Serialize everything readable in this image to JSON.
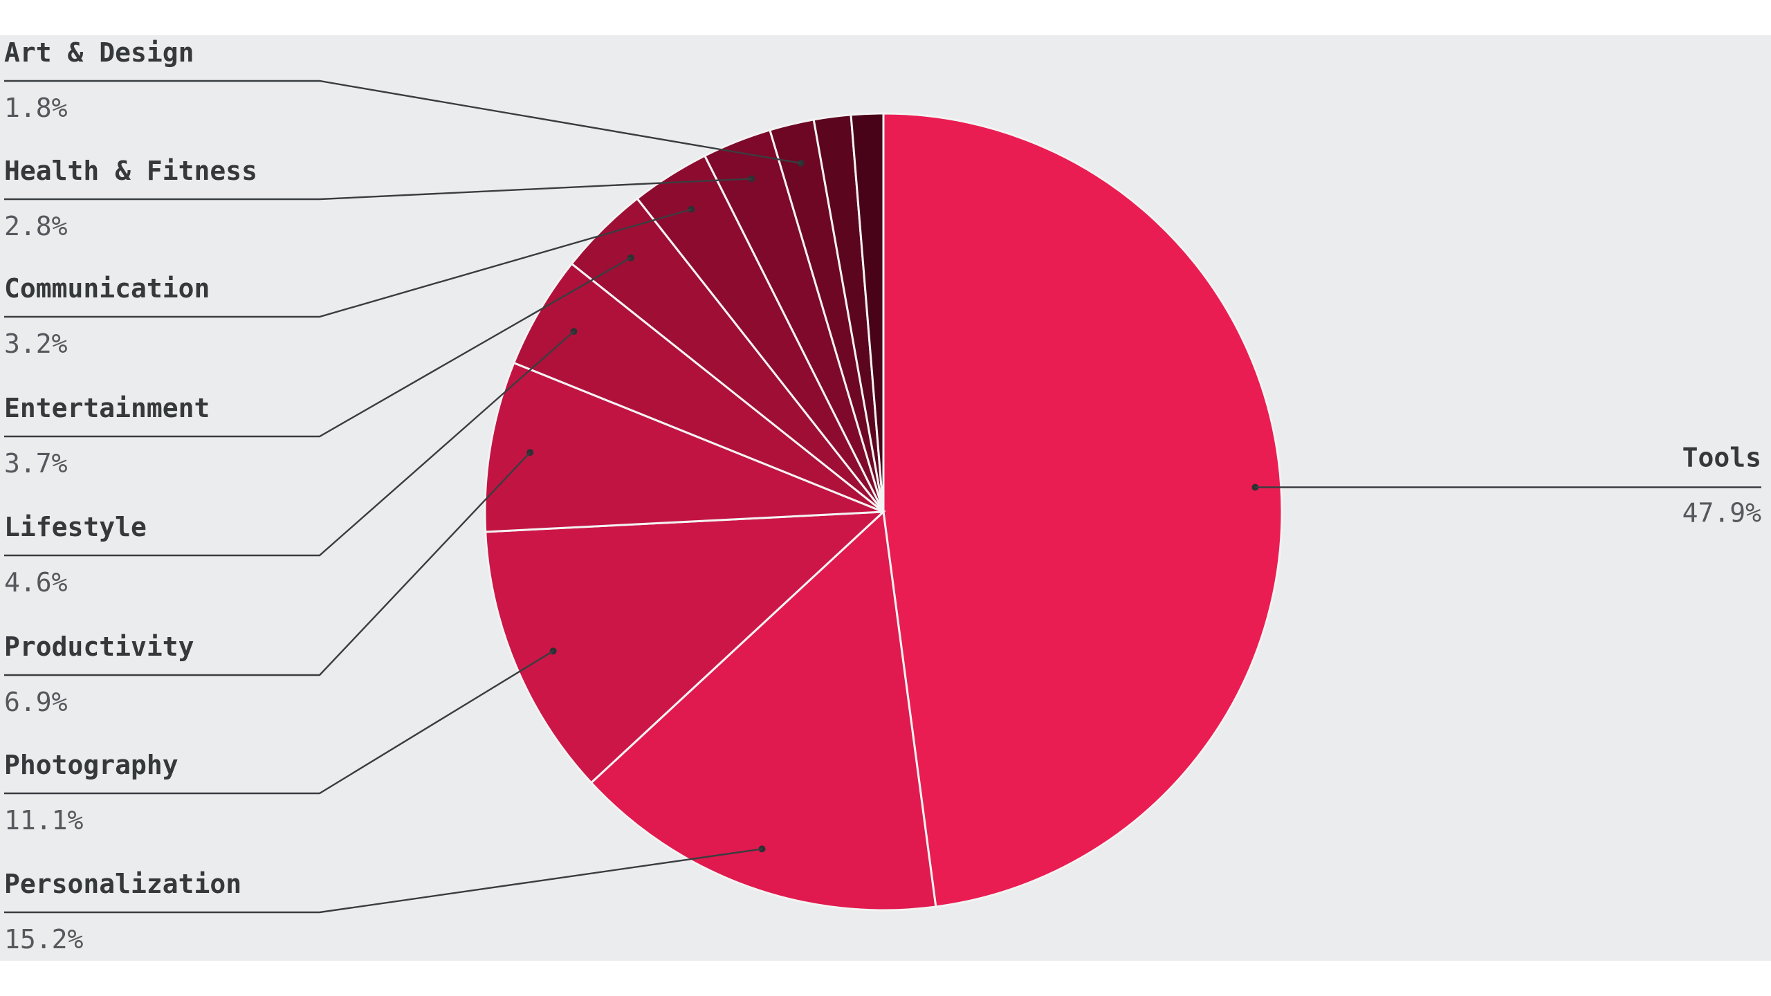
{
  "chart_data": {
    "type": "pie",
    "title": "",
    "start": "12 o'clock, clockwise",
    "slices": [
      {
        "label": "Tools",
        "value": 47.9,
        "value_label": "47.9%",
        "color": "#ea1d52"
      },
      {
        "label": "Personalization",
        "value": 15.2,
        "value_label": "15.2%",
        "color": "#e01a4e"
      },
      {
        "label": "Photography",
        "value": 11.1,
        "value_label": "11.1%",
        "color": "#cc1647"
      },
      {
        "label": "Productivity",
        "value": 6.9,
        "value_label": "6.9%",
        "color": "#c21443"
      },
      {
        "label": "Lifestyle",
        "value": 4.6,
        "value_label": "4.6%",
        "color": "#b0113b"
      },
      {
        "label": "Entertainment",
        "value": 3.7,
        "value_label": "3.7%",
        "color": "#9e0e35"
      },
      {
        "label": "Communication",
        "value": 3.2,
        "value_label": "3.2%",
        "color": "#8e0b30"
      },
      {
        "label": "Health & Fitness",
        "value": 2.8,
        "value_label": "2.8%",
        "color": "#7e092a"
      },
      {
        "label": "Art & Design",
        "value": 1.8,
        "value_label": "1.8%",
        "color": "#6e0724"
      },
      {
        "label": "",
        "value": 1.5,
        "value_label": "",
        "color": "#5c051f"
      },
      {
        "label": "",
        "value": 1.3,
        "value_label": "",
        "color": "#490319"
      }
    ],
    "legend": "none",
    "grid": false
  }
}
